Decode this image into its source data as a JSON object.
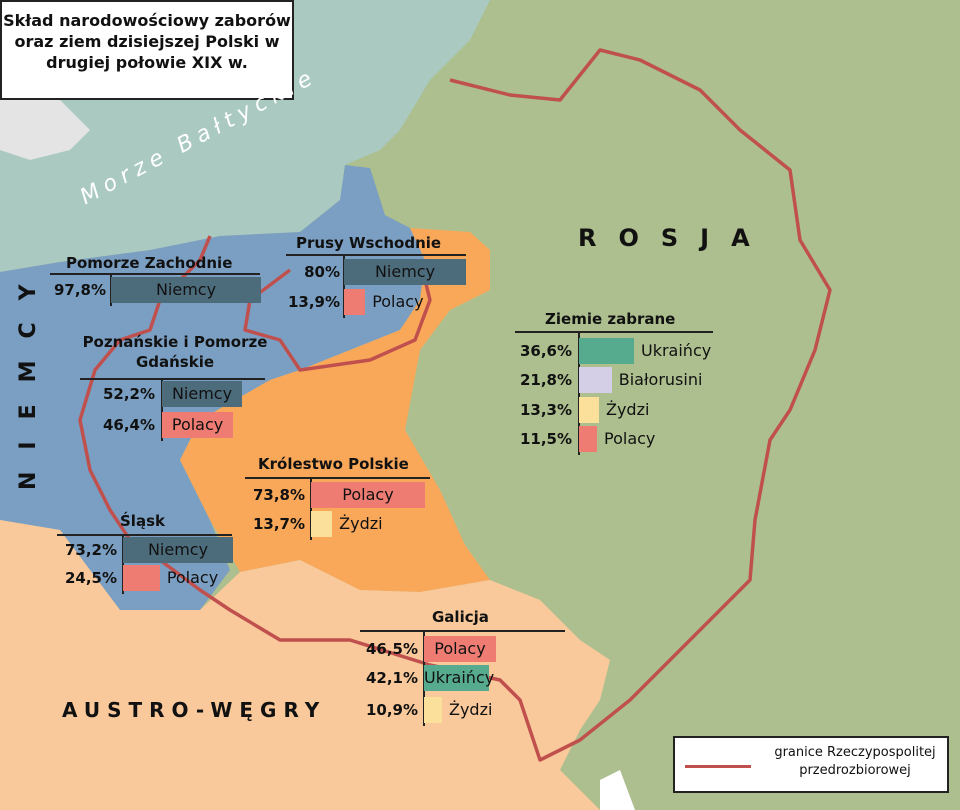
{
  "title": "Skład narodowościowy zaborów oraz ziem dzisiejszej Polski w drugiej połowie XIX w.",
  "colors": {
    "sea": "#a9c9c1",
    "russia": "#adbf8e",
    "prussia": "#7b9fc2",
    "kingdom": "#f9a85a",
    "austria": "#f9c99b",
    "border": "#c0504d",
    "niemcy": "#4d6c7b",
    "polacy": "#ef7c73",
    "ukraincy": "#56ab8e",
    "bialorusini": "#d4cfe6",
    "zydzi": "#fbe09b"
  },
  "labels": {
    "sea": "Morze Bałtyckie",
    "russia": "ROSJA",
    "germany": "NIEMCY",
    "austria": "AUSTRO-WĘGRY"
  },
  "regions": [
    {
      "name": "Pomorze Zachodnie",
      "rows": [
        {
          "pct": "97,8%",
          "group": "Niemcy",
          "value": 97.8
        }
      ]
    },
    {
      "name": "Prusy Wschodnie",
      "rows": [
        {
          "pct": "80%",
          "group": "Niemcy",
          "value": 80
        },
        {
          "pct": "13,9%",
          "group": "Polacy",
          "value": 13.9
        }
      ]
    },
    {
      "name": "Poznańskie i Pomorze Gdańskie",
      "rows": [
        {
          "pct": "52,2%",
          "group": "Niemcy",
          "value": 52.2
        },
        {
          "pct": "46,4%",
          "group": "Polacy",
          "value": 46.4
        }
      ]
    },
    {
      "name": "Ziemie zabrane",
      "rows": [
        {
          "pct": "36,6%",
          "group": "Ukraińcy",
          "value": 36.6
        },
        {
          "pct": "21,8%",
          "group": "Białorusini",
          "value": 21.8
        },
        {
          "pct": "13,3%",
          "group": "Żydzi",
          "value": 13.3
        },
        {
          "pct": "11,5%",
          "group": "Polacy",
          "value": 11.5
        }
      ]
    },
    {
      "name": "Królestwo Polskie",
      "rows": [
        {
          "pct": "73,8%",
          "group": "Polacy",
          "value": 73.8
        },
        {
          "pct": "13,7%",
          "group": "Żydzi",
          "value": 13.7
        }
      ]
    },
    {
      "name": "Śląsk",
      "rows": [
        {
          "pct": "73,2%",
          "group": "Niemcy",
          "value": 73.2
        },
        {
          "pct": "24,5%",
          "group": "Polacy",
          "value": 24.5
        }
      ]
    },
    {
      "name": "Galicja",
      "rows": [
        {
          "pct": "46,5%",
          "group": "Polacy",
          "value": 46.5
        },
        {
          "pct": "42,1%",
          "group": "Ukraińcy",
          "value": 42.1
        },
        {
          "pct": "10,9%",
          "group": "Żydzi",
          "value": 10.9
        }
      ]
    }
  ],
  "legend": {
    "label": "granice Rzeczypospolitej przedrozbiorowej"
  }
}
